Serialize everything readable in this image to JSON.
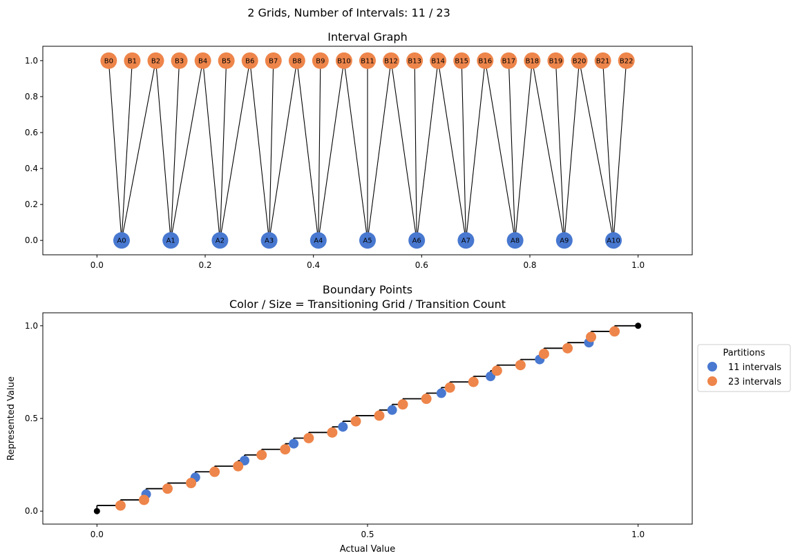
{
  "suptitle": "2 Grids, Number of Intervals: 11 / 23",
  "colors": {
    "a": "#4878d0",
    "b": "#ee854a",
    "endpoint": "#000000",
    "edge": "#000000"
  },
  "chart_data": [
    {
      "type": "graph",
      "title": "Interval Graph",
      "xlim": [
        -0.1,
        1.1
      ],
      "ylim": [
        -0.08,
        1.08
      ],
      "xticks": [
        0.0,
        0.2,
        0.4,
        0.6,
        0.8,
        1.0
      ],
      "xtick_labels": [
        "0.0",
        "0.2",
        "0.4",
        "0.6",
        "0.8",
        "1.0"
      ],
      "yticks": [
        0.0,
        0.2,
        0.4,
        0.6,
        0.8,
        1.0
      ],
      "ytick_labels": [
        "0.0",
        "0.2",
        "0.4",
        "0.6",
        "0.8",
        "1.0"
      ],
      "nodes_a": [
        {
          "label": "A0",
          "x": 0.0455
        },
        {
          "label": "A1",
          "x": 0.1364
        },
        {
          "label": "A2",
          "x": 0.2273
        },
        {
          "label": "A3",
          "x": 0.3182
        },
        {
          "label": "A4",
          "x": 0.4091
        },
        {
          "label": "A5",
          "x": 0.5
        },
        {
          "label": "A6",
          "x": 0.5909
        },
        {
          "label": "A7",
          "x": 0.6818
        },
        {
          "label": "A8",
          "x": 0.7727
        },
        {
          "label": "A9",
          "x": 0.8636
        },
        {
          "label": "A10",
          "x": 0.9545
        }
      ],
      "nodes_b": [
        {
          "label": "B0",
          "x": 0.0217
        },
        {
          "label": "B1",
          "x": 0.0652
        },
        {
          "label": "B2",
          "x": 0.1087
        },
        {
          "label": "B3",
          "x": 0.1522
        },
        {
          "label": "B4",
          "x": 0.1957
        },
        {
          "label": "B5",
          "x": 0.2391
        },
        {
          "label": "B6",
          "x": 0.2826
        },
        {
          "label": "B7",
          "x": 0.3261
        },
        {
          "label": "B8",
          "x": 0.3696
        },
        {
          "label": "B9",
          "x": 0.413
        },
        {
          "label": "B10",
          "x": 0.4565
        },
        {
          "label": "B11",
          "x": 0.5
        },
        {
          "label": "B12",
          "x": 0.5435
        },
        {
          "label": "B13",
          "x": 0.587
        },
        {
          "label": "B14",
          "x": 0.6304
        },
        {
          "label": "B15",
          "x": 0.6739
        },
        {
          "label": "B16",
          "x": 0.7174
        },
        {
          "label": "B17",
          "x": 0.7609
        },
        {
          "label": "B18",
          "x": 0.8043
        },
        {
          "label": "B19",
          "x": 0.8478
        },
        {
          "label": "B20",
          "x": 0.8913
        },
        {
          "label": "B21",
          "x": 0.9348
        },
        {
          "label": "B22",
          "x": 0.9783
        }
      ],
      "edges": [
        [
          0,
          0
        ],
        [
          0,
          1
        ],
        [
          0,
          2
        ],
        [
          1,
          2
        ],
        [
          1,
          3
        ],
        [
          1,
          4
        ],
        [
          2,
          4
        ],
        [
          2,
          5
        ],
        [
          2,
          6
        ],
        [
          3,
          6
        ],
        [
          3,
          7
        ],
        [
          3,
          8
        ],
        [
          4,
          8
        ],
        [
          4,
          9
        ],
        [
          4,
          10
        ],
        [
          5,
          10
        ],
        [
          5,
          11
        ],
        [
          5,
          12
        ],
        [
          6,
          12
        ],
        [
          6,
          13
        ],
        [
          6,
          14
        ],
        [
          7,
          14
        ],
        [
          7,
          15
        ],
        [
          7,
          16
        ],
        [
          8,
          16
        ],
        [
          8,
          17
        ],
        [
          8,
          18
        ],
        [
          9,
          18
        ],
        [
          9,
          19
        ],
        [
          9,
          20
        ],
        [
          10,
          20
        ],
        [
          10,
          21
        ],
        [
          10,
          22
        ]
      ]
    },
    {
      "type": "scatter",
      "title": "Boundary Points",
      "subtitle": "Color / Size = Transitioning Grid / Transition Count",
      "xlabel": "Actual Value",
      "ylabel": "Represented Value",
      "xlim": [
        -0.1,
        1.1
      ],
      "ylim": [
        -0.07,
        1.07
      ],
      "xticks": [
        0.0,
        0.5,
        1.0
      ],
      "xtick_labels": [
        "0.0",
        "0.5",
        "1.0"
      ],
      "yticks": [
        0.0,
        0.5,
        1.0
      ],
      "ytick_labels": [
        "0.0",
        "0.5",
        "1.0"
      ],
      "legend": {
        "title": "Partitions",
        "position": "right",
        "entries": [
          {
            "label": "11 intervals",
            "series": "a"
          },
          {
            "label": "23 intervals",
            "series": "b"
          }
        ]
      },
      "series": [
        {
          "name": "11 intervals",
          "x": [
            0.0909,
            0.1818,
            0.2727,
            0.3636,
            0.4545,
            0.5455,
            0.6364,
            0.7273,
            0.8182,
            0.9091
          ]
        },
        {
          "name": "23 intervals",
          "x": [
            0.0435,
            0.087,
            0.1304,
            0.1739,
            0.2174,
            0.2609,
            0.3043,
            0.3478,
            0.3913,
            0.4348,
            0.4783,
            0.5217,
            0.5652,
            0.6087,
            0.6522,
            0.6957,
            0.7391,
            0.7826,
            0.8261,
            0.8696,
            0.913,
            0.9565
          ]
        }
      ],
      "endpoints": [
        [
          0,
          0
        ],
        [
          1,
          1
        ]
      ]
    }
  ]
}
